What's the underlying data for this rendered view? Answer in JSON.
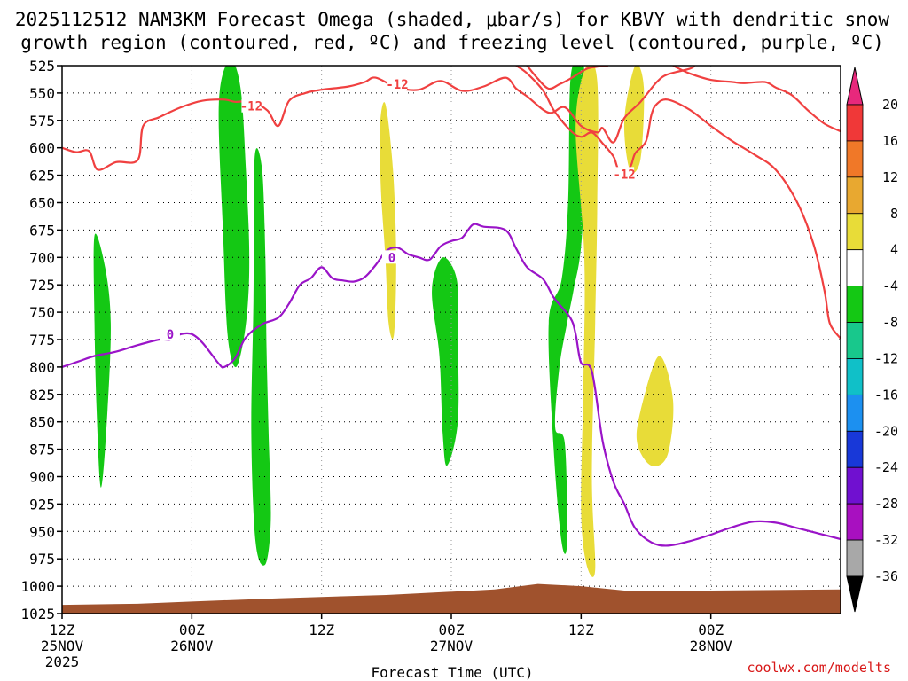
{
  "chart_data": {
    "type": "heatmap",
    "title": {
      "line1": "2025112512 NAM3KM Forecast Omega (shaded, μbar/s) for KBVY with dendritic snow",
      "line2": "growth region (contoured, red, ºC) and freezing level (contoured, purple, ºC)"
    },
    "xlabel": "Forecast Time (UTC)",
    "credit": "coolwx.com/modelts",
    "x_range_hours": [
      0,
      72
    ],
    "x_ticks": [
      {
        "hour": 0,
        "line1": "12Z",
        "line2": "25NOV",
        "line3": "2025"
      },
      {
        "hour": 12,
        "line1": "00Z",
        "line2": "26NOV",
        "line3": ""
      },
      {
        "hour": 24,
        "line1": "12Z",
        "line2": "",
        "line3": ""
      },
      {
        "hour": 36,
        "line1": "00Z",
        "line2": "27NOV",
        "line3": ""
      },
      {
        "hour": 48,
        "line1": "12Z",
        "line2": "",
        "line3": ""
      },
      {
        "hour": 60,
        "line1": "00Z",
        "line2": "28NOV",
        "line3": ""
      }
    ],
    "y_range_hpa": [
      525,
      1025
    ],
    "y_ticks": [
      525,
      550,
      575,
      600,
      625,
      650,
      675,
      700,
      725,
      750,
      775,
      800,
      825,
      850,
      875,
      900,
      925,
      950,
      975,
      1000,
      1025
    ],
    "colorbar": {
      "labels": [
        "20",
        "16",
        "12",
        "8",
        "4",
        "-4",
        "-8",
        "-12",
        "-16",
        "-20",
        "-24",
        "-28",
        "-32",
        "-36"
      ],
      "colors": [
        "#f03838",
        "#f07828",
        "#e8a830",
        "#e8dc38",
        "#ffffff",
        "#14c814",
        "#18c88c",
        "#10c0c8",
        "#1c90f0",
        "#1838d8",
        "#7010d0",
        "#a810c0",
        "#a8a8a8"
      ],
      "top_arrow_color": "#e8287c",
      "bottom_arrow_color": "#000000"
    },
    "contours": [
      {
        "name": "dendritic-top",
        "label": "-12",
        "color": "#f04040",
        "points": [
          [
            0,
            600
          ],
          [
            1.3,
            604
          ],
          [
            2.5,
            603
          ],
          [
            3.3,
            620
          ],
          [
            5,
            613
          ],
          [
            7,
            611
          ],
          [
            7.5,
            580
          ],
          [
            9,
            572
          ],
          [
            11,
            563
          ],
          [
            13,
            557
          ],
          [
            15,
            556
          ],
          [
            16,
            558
          ],
          [
            17.5,
            558
          ],
          [
            19,
            566
          ],
          [
            20,
            580
          ],
          [
            21,
            557
          ],
          [
            22.5,
            550
          ],
          [
            24,
            547
          ],
          [
            26.5,
            544
          ],
          [
            28,
            540
          ],
          [
            29,
            536
          ],
          [
            31,
            545
          ],
          [
            33,
            547
          ],
          [
            35,
            539
          ],
          [
            37,
            548
          ],
          [
            39,
            544
          ],
          [
            41,
            536
          ],
          [
            42,
            546
          ],
          [
            43,
            553
          ],
          [
            45,
            568
          ],
          [
            46.5,
            563
          ],
          [
            48,
            580
          ],
          [
            49.5,
            586
          ],
          [
            50,
            582
          ],
          [
            51,
            595
          ],
          [
            52,
            573
          ],
          [
            53.5,
            558
          ],
          [
            55,
            540
          ],
          [
            56,
            533
          ],
          [
            58,
            528
          ],
          [
            58.5,
            525
          ]
        ],
        "label_hour": 17.5,
        "label_hpa": 562,
        "label2_hour": 31,
        "label2_hpa": 542
      },
      {
        "name": "dendritic-bottom",
        "label": "-12",
        "color": "#f04040",
        "points": [
          [
            42,
            525
          ],
          [
            43,
            532
          ],
          [
            44.5,
            548
          ],
          [
            45.5,
            566
          ],
          [
            47,
            584
          ],
          [
            48,
            590
          ],
          [
            49,
            586
          ],
          [
            50,
            596
          ],
          [
            51,
            608
          ],
          [
            51.5,
            620
          ],
          [
            52.5,
            618
          ],
          [
            53,
            605
          ],
          [
            54,
            594
          ],
          [
            54.5,
            570
          ],
          [
            55,
            560
          ],
          [
            56,
            556
          ],
          [
            58,
            565
          ],
          [
            60,
            580
          ],
          [
            62,
            594
          ],
          [
            64,
            606
          ],
          [
            66,
            620
          ],
          [
            68,
            650
          ],
          [
            69.5,
            688
          ],
          [
            70.5,
            730
          ],
          [
            71,
            760
          ],
          [
            72,
            774
          ]
        ],
        "label_hour": 52,
        "label_hpa": 624
      },
      {
        "name": "dendritic-upper-right",
        "label": "",
        "color": "#f04040",
        "points": [
          [
            56.5,
            525
          ],
          [
            58,
            532
          ],
          [
            60,
            538
          ],
          [
            62,
            540
          ],
          [
            63,
            541
          ],
          [
            65,
            540
          ],
          [
            66,
            545
          ],
          [
            67.5,
            552
          ],
          [
            69,
            566
          ],
          [
            70.5,
            578
          ],
          [
            72,
            585
          ]
        ]
      },
      {
        "name": "dendritic-zigzag",
        "label": "",
        "color": "#f04040",
        "points": [
          [
            43,
            525
          ],
          [
            44,
            537
          ],
          [
            45,
            546
          ],
          [
            46,
            542
          ],
          [
            47,
            537
          ],
          [
            48.5,
            528
          ],
          [
            49.5,
            526
          ],
          [
            50.5,
            525
          ]
        ]
      },
      {
        "name": "freezing-level",
        "label": "0",
        "color": "#9a14c8",
        "points": [
          [
            0,
            800
          ],
          [
            1.5,
            795
          ],
          [
            3,
            790
          ],
          [
            5,
            786
          ],
          [
            7,
            780
          ],
          [
            9,
            775
          ],
          [
            10,
            775
          ],
          [
            11,
            770
          ],
          [
            12,
            770
          ],
          [
            13,
            778
          ],
          [
            14.5,
            797
          ],
          [
            15,
            800
          ],
          [
            16,
            792
          ],
          [
            17,
            773
          ],
          [
            18.5,
            761
          ],
          [
            20,
            755
          ],
          [
            21,
            742
          ],
          [
            22,
            725
          ],
          [
            23,
            719
          ],
          [
            24,
            709
          ],
          [
            25,
            719
          ],
          [
            26,
            721
          ],
          [
            27,
            722
          ],
          [
            28,
            718
          ],
          [
            29,
            707
          ],
          [
            30,
            694
          ],
          [
            31,
            691
          ],
          [
            32,
            697
          ],
          [
            33,
            700
          ],
          [
            34,
            702
          ],
          [
            35,
            690
          ],
          [
            36,
            685
          ],
          [
            37,
            682
          ],
          [
            38,
            670
          ],
          [
            39,
            672
          ],
          [
            41,
            675
          ],
          [
            42,
            692
          ],
          [
            43,
            709
          ],
          [
            44.5,
            720
          ],
          [
            45.5,
            737
          ],
          [
            47,
            755
          ],
          [
            47.5,
            770
          ],
          [
            48,
            796
          ],
          [
            49,
            804
          ],
          [
            50,
            868
          ],
          [
            51,
            905
          ],
          [
            52,
            925
          ],
          [
            53,
            947
          ],
          [
            54.5,
            960
          ],
          [
            56,
            963
          ],
          [
            58,
            959
          ],
          [
            60,
            953
          ],
          [
            62,
            946
          ],
          [
            64,
            941
          ],
          [
            66,
            942
          ],
          [
            68,
            947
          ],
          [
            70,
            952
          ],
          [
            72,
            957
          ]
        ],
        "label_hour": 10,
        "label_hpa": 770,
        "label2_hour": 30.5,
        "label2_hpa": 700
      }
    ],
    "shaded_regions": [
      {
        "name": "omega-upward-band-a",
        "color": "#14c814",
        "points": [
          [
            3,
            680
          ],
          [
            4,
            710
          ],
          [
            4.5,
            760
          ],
          [
            4.2,
            840
          ],
          [
            3.6,
            910
          ],
          [
            3.2,
            840
          ],
          [
            3,
            760
          ]
        ]
      },
      {
        "name": "omega-upward-band-b",
        "color": "#14c814",
        "points": [
          [
            14.5,
            560
          ],
          [
            15.5,
            520
          ],
          [
            16.5,
            545
          ],
          [
            17,
            620
          ],
          [
            17.3,
            690
          ],
          [
            17.2,
            740
          ],
          [
            16.7,
            780
          ],
          [
            16,
            800
          ],
          [
            15.3,
            770
          ],
          [
            14.9,
            680
          ]
        ]
      },
      {
        "name": "omega-upward-band-c",
        "color": "#14c814",
        "points": [
          [
            17.8,
            610
          ],
          [
            18.5,
            620
          ],
          [
            18.8,
            700
          ],
          [
            18.9,
            780
          ],
          [
            19.1,
            860
          ],
          [
            19.3,
            940
          ],
          [
            18.8,
            980
          ],
          [
            17.9,
            960
          ],
          [
            17.5,
            860
          ],
          [
            17.7,
            740
          ]
        ]
      },
      {
        "name": "omega-upward-band-d",
        "color": "#14c814",
        "points": [
          [
            34.2,
            730
          ],
          [
            35.2,
            700
          ],
          [
            36.5,
            720
          ],
          [
            36.6,
            770
          ],
          [
            36.6,
            850
          ],
          [
            35.6,
            890
          ],
          [
            35.2,
            860
          ],
          [
            34.9,
            790
          ]
        ]
      },
      {
        "name": "omega-upward-band-e",
        "color": "#14c814",
        "points": [
          [
            47,
            540
          ],
          [
            47.7,
            520
          ],
          [
            48.3,
            530
          ],
          [
            48.4,
            610
          ],
          [
            48,
            690
          ],
          [
            47.3,
            730
          ],
          [
            46.7,
            760
          ],
          [
            46,
            800
          ],
          [
            45.6,
            855
          ],
          [
            46.5,
            870
          ],
          [
            46.7,
            960
          ],
          [
            46.2,
            960
          ],
          [
            45.5,
            880
          ],
          [
            45,
            760
          ],
          [
            46.2,
            720
          ],
          [
            46.8,
            650
          ]
        ]
      },
      {
        "name": "omega-sink-column-1",
        "color": "#e8dc38",
        "points": [
          [
            29.4,
            580
          ],
          [
            29.9,
            560
          ],
          [
            30.6,
            620
          ],
          [
            30.9,
            700
          ],
          [
            30.7,
            770
          ],
          [
            30.2,
            760
          ],
          [
            29.9,
            700
          ],
          [
            29.5,
            640
          ]
        ]
      },
      {
        "name": "omega-sink-column-2",
        "color": "#e8dc38",
        "points": [
          [
            47.5,
            580
          ],
          [
            48.5,
            525
          ],
          [
            49.5,
            540
          ],
          [
            49.5,
            650
          ],
          [
            49.3,
            760
          ],
          [
            49,
            900
          ],
          [
            49.3,
            985
          ],
          [
            48.5,
            980
          ],
          [
            48,
            930
          ],
          [
            48.2,
            820
          ],
          [
            48.3,
            700
          ]
        ]
      },
      {
        "name": "omega-sink-column-3",
        "color": "#e8dc38",
        "points": [
          [
            53.5,
            840
          ],
          [
            55.2,
            790
          ],
          [
            56.5,
            830
          ],
          [
            56,
            880
          ],
          [
            54.5,
            890
          ],
          [
            53.2,
            870
          ]
        ]
      },
      {
        "name": "omega-sink-right",
        "color": "#e8dc38",
        "points": [
          [
            52,
            575
          ],
          [
            53,
            525
          ],
          [
            53.8,
            545
          ],
          [
            53.5,
            610
          ],
          [
            52.5,
            620
          ]
        ]
      }
    ],
    "terrain": {
      "color": "#a0522d",
      "label": "surface",
      "surface_hpa": [
        [
          0,
          1017
        ],
        [
          7,
          1016
        ],
        [
          12,
          1014
        ],
        [
          20,
          1011
        ],
        [
          30,
          1008
        ],
        [
          40,
          1003
        ],
        [
          44,
          998
        ],
        [
          48,
          1000
        ],
        [
          52,
          1004
        ],
        [
          60,
          1004
        ],
        [
          72,
          1003
        ]
      ]
    }
  }
}
